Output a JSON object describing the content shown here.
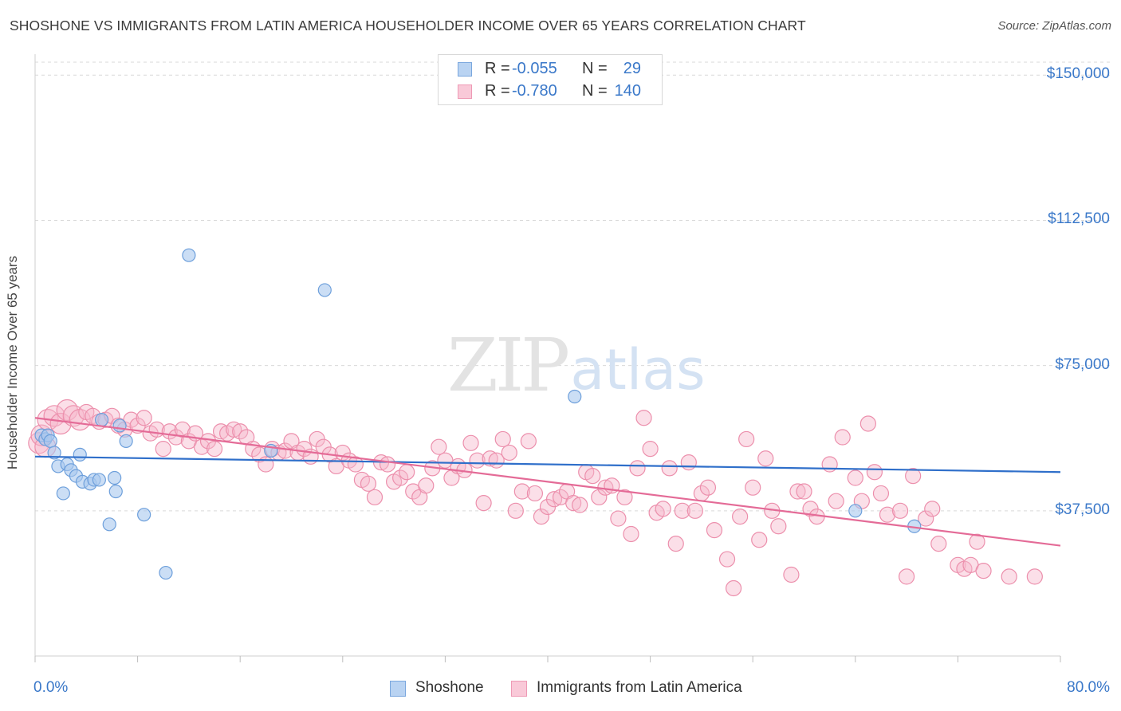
{
  "title": "SHOSHONE VS IMMIGRANTS FROM LATIN AMERICA HOUSEHOLDER INCOME OVER 65 YEARS CORRELATION CHART",
  "source": "Source: ZipAtlas.com",
  "watermark": {
    "zip": "ZIP",
    "atlas": "atlas"
  },
  "colors": {
    "blue_fill": "#a8c8ef",
    "blue_stroke": "#6d9fdb",
    "blue_line": "#2f6fca",
    "pink_fill": "#f6b8cb",
    "pink_stroke": "#ec8fac",
    "pink_line": "#e46b97",
    "label_blue": "#3a78c9",
    "grid": "#d9d9d9"
  },
  "legend_top": {
    "rows": [
      {
        "r_label": "R =",
        "r_value": "-0.055",
        "n_label": "N =",
        "n_value": "29",
        "series": "blue"
      },
      {
        "r_label": "R =",
        "r_value": "-0.780",
        "n_label": "N =",
        "n_value": "140",
        "series": "pink"
      }
    ]
  },
  "legend_bottom": [
    {
      "label": "Shoshone",
      "series": "blue"
    },
    {
      "label": "Immigrants from Latin America",
      "series": "pink"
    }
  ],
  "chart_data": {
    "type": "scatter",
    "title": "SHOSHONE VS IMMIGRANTS FROM LATIN AMERICA HOUSEHOLDER INCOME OVER 65 YEARS CORRELATION CHART",
    "xlabel": "",
    "ylabel": "Householder Income Over 65 years",
    "xlim": [
      0,
      80
    ],
    "ylim": [
      0,
      155000
    ],
    "x_tick_labels": [
      "0.0%",
      "80.0%"
    ],
    "y_ticks": [
      37500,
      75000,
      112500,
      150000
    ],
    "y_tick_labels": [
      "$37,500",
      "$75,000",
      "$112,500",
      "$150,000"
    ],
    "grid": "horizontal dashed",
    "legend_placement": "top-center",
    "series": [
      {
        "name": "Shoshone",
        "color": "#6d9fdb",
        "r": -0.055,
        "n": 29,
        "trend": {
          "x": [
            0,
            80
          ],
          "y": [
            51500,
            47500
          ]
        },
        "points": [
          [
            0.5,
            57000
          ],
          [
            0.8,
            56000
          ],
          [
            1.0,
            57000
          ],
          [
            1.2,
            55500
          ],
          [
            1.5,
            52500
          ],
          [
            1.8,
            49000
          ],
          [
            2.2,
            42000
          ],
          [
            2.5,
            49500
          ],
          [
            2.8,
            48000
          ],
          [
            3.2,
            46500
          ],
          [
            3.5,
            52000
          ],
          [
            3.7,
            45000
          ],
          [
            4.3,
            44500
          ],
          [
            4.6,
            45500
          ],
          [
            5.0,
            45500
          ],
          [
            5.2,
            61000
          ],
          [
            5.8,
            34000
          ],
          [
            6.2,
            46000
          ],
          [
            6.3,
            42500
          ],
          [
            6.6,
            59500
          ],
          [
            7.1,
            55500
          ],
          [
            8.5,
            36500
          ],
          [
            10.2,
            21500
          ],
          [
            12.0,
            103500
          ],
          [
            18.4,
            53000
          ],
          [
            22.6,
            94500
          ],
          [
            42.1,
            67000
          ],
          [
            64.0,
            37500
          ],
          [
            68.6,
            33500
          ]
        ]
      },
      {
        "name": "Immigrants from Latin America",
        "color": "#ec8fac",
        "r": -0.78,
        "n": 140,
        "trend": {
          "x": [
            0,
            80
          ],
          "y": [
            61500,
            28500
          ]
        },
        "points": [
          [
            0.3,
            55000
          ],
          [
            0.5,
            57000
          ],
          [
            0.8,
            54000
          ],
          [
            1.0,
            61000
          ],
          [
            1.5,
            62000
          ],
          [
            2.0,
            60000
          ],
          [
            2.5,
            63500
          ],
          [
            3.0,
            62000
          ],
          [
            3.5,
            61000
          ],
          [
            4.0,
            63000
          ],
          [
            4.5,
            62000
          ],
          [
            5.0,
            60500
          ],
          [
            5.5,
            61000
          ],
          [
            6.0,
            62000
          ],
          [
            6.5,
            59500
          ],
          [
            7.0,
            58500
          ],
          [
            7.5,
            61000
          ],
          [
            8.0,
            59500
          ],
          [
            8.5,
            61500
          ],
          [
            9.0,
            57500
          ],
          [
            9.5,
            58500
          ],
          [
            10.0,
            53500
          ],
          [
            10.5,
            58000
          ],
          [
            11.0,
            56500
          ],
          [
            11.5,
            58500
          ],
          [
            12.0,
            55500
          ],
          [
            12.5,
            57500
          ],
          [
            13.0,
            54000
          ],
          [
            13.5,
            55500
          ],
          [
            14.0,
            53500
          ],
          [
            14.5,
            58000
          ],
          [
            15.0,
            57500
          ],
          [
            15.5,
            58500
          ],
          [
            16.0,
            58000
          ],
          [
            16.5,
            56500
          ],
          [
            17.0,
            53500
          ],
          [
            17.5,
            52000
          ],
          [
            18.0,
            49500
          ],
          [
            18.5,
            53500
          ],
          [
            19.0,
            52500
          ],
          [
            19.5,
            53000
          ],
          [
            20.0,
            55500
          ],
          [
            20.5,
            52500
          ],
          [
            21.0,
            53500
          ],
          [
            21.5,
            51500
          ],
          [
            22.0,
            56000
          ],
          [
            22.5,
            54000
          ],
          [
            23.0,
            52000
          ],
          [
            23.5,
            49000
          ],
          [
            24.0,
            52500
          ],
          [
            24.5,
            50500
          ],
          [
            25.0,
            49500
          ],
          [
            25.5,
            45500
          ],
          [
            26.0,
            44500
          ],
          [
            26.5,
            41000
          ],
          [
            27.0,
            50000
          ],
          [
            27.5,
            49500
          ],
          [
            28.0,
            45000
          ],
          [
            28.5,
            46000
          ],
          [
            29.0,
            47500
          ],
          [
            29.5,
            42500
          ],
          [
            30.0,
            41000
          ],
          [
            30.5,
            44000
          ],
          [
            31.0,
            48500
          ],
          [
            31.5,
            54000
          ],
          [
            32.0,
            50500
          ],
          [
            32.5,
            46000
          ],
          [
            33.0,
            49000
          ],
          [
            33.5,
            48000
          ],
          [
            34.0,
            55000
          ],
          [
            34.5,
            50500
          ],
          [
            35.0,
            39500
          ],
          [
            35.5,
            51000
          ],
          [
            36.0,
            50500
          ],
          [
            36.5,
            56000
          ],
          [
            37.0,
            52500
          ],
          [
            37.5,
            37500
          ],
          [
            38.0,
            42500
          ],
          [
            38.5,
            55500
          ],
          [
            39.0,
            42000
          ],
          [
            39.5,
            36000
          ],
          [
            40.0,
            38500
          ],
          [
            40.5,
            40500
          ],
          [
            41.0,
            41000
          ],
          [
            41.5,
            42500
          ],
          [
            42.0,
            39500
          ],
          [
            42.5,
            39000
          ],
          [
            43.0,
            47500
          ],
          [
            43.5,
            46500
          ],
          [
            44.0,
            41000
          ],
          [
            44.5,
            43500
          ],
          [
            45.0,
            44000
          ],
          [
            45.5,
            35500
          ],
          [
            46.0,
            41000
          ],
          [
            46.5,
            31500
          ],
          [
            47.0,
            48500
          ],
          [
            47.5,
            61500
          ],
          [
            48.0,
            53500
          ],
          [
            48.5,
            37000
          ],
          [
            49.0,
            38000
          ],
          [
            49.5,
            48500
          ],
          [
            50.0,
            29000
          ],
          [
            50.5,
            37500
          ],
          [
            51.0,
            50000
          ],
          [
            51.5,
            37500
          ],
          [
            52.0,
            42000
          ],
          [
            52.5,
            43500
          ],
          [
            53.0,
            32500
          ],
          [
            54.0,
            25000
          ],
          [
            54.5,
            17500
          ],
          [
            55.0,
            36000
          ],
          [
            55.5,
            56000
          ],
          [
            56.0,
            43500
          ],
          [
            56.5,
            30000
          ],
          [
            57.0,
            51000
          ],
          [
            57.5,
            37500
          ],
          [
            58.0,
            33500
          ],
          [
            59.0,
            21000
          ],
          [
            59.5,
            42500
          ],
          [
            60.0,
            42500
          ],
          [
            60.5,
            38000
          ],
          [
            61.0,
            36000
          ],
          [
            62.0,
            49500
          ],
          [
            62.5,
            40000
          ],
          [
            63.0,
            56500
          ],
          [
            64.0,
            46000
          ],
          [
            64.5,
            40000
          ],
          [
            65.0,
            60000
          ],
          [
            65.5,
            47500
          ],
          [
            66.0,
            42000
          ],
          [
            66.5,
            36500
          ],
          [
            67.5,
            37500
          ],
          [
            68.0,
            20500
          ],
          [
            68.5,
            46500
          ],
          [
            69.5,
            35500
          ],
          [
            70.0,
            38000
          ],
          [
            70.5,
            29000
          ],
          [
            72.0,
            23500
          ],
          [
            72.5,
            22500
          ],
          [
            73.0,
            23500
          ],
          [
            73.5,
            29500
          ],
          [
            74.0,
            22000
          ],
          [
            76.0,
            20500
          ],
          [
            78.0,
            20500
          ]
        ]
      }
    ]
  }
}
